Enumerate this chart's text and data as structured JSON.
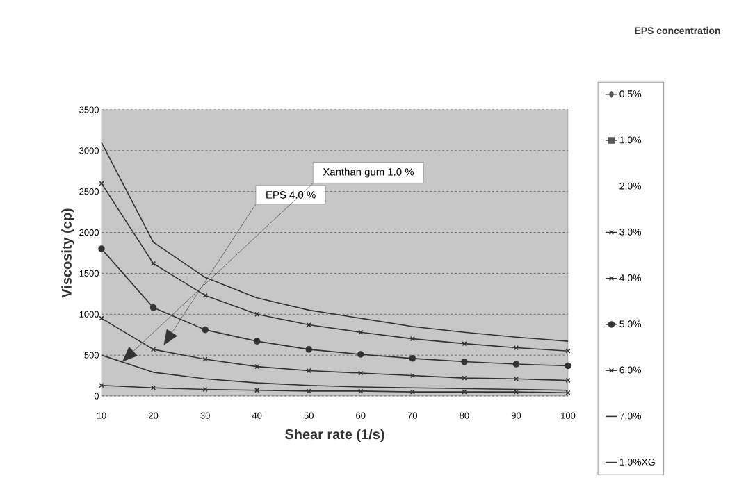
{
  "chart_data": {
    "type": "line",
    "xlabel": "Shear rate (1/s)",
    "ylabel": "Viscosity (cp)",
    "legend_title": "EPS concentration",
    "x": [
      10,
      20,
      30,
      40,
      50,
      60,
      70,
      80,
      90,
      100
    ],
    "xlim": [
      10,
      100
    ],
    "xticks": [
      10,
      20,
      30,
      40,
      50,
      60,
      70,
      80,
      90,
      100
    ],
    "ylim": [
      0,
      3500
    ],
    "yticks": [
      0,
      500,
      1000,
      1500,
      2000,
      2500,
      3000,
      3500
    ],
    "grid": "y",
    "legend": "right",
    "series": [
      {
        "name": "0.5%",
        "color": "#555555",
        "marker": "diamond",
        "values": [
          null,
          null,
          null,
          null,
          null,
          null,
          null,
          null,
          null,
          null
        ]
      },
      {
        "name": "1.0%",
        "color": "#555555",
        "marker": "square",
        "values": [
          null,
          null,
          null,
          null,
          null,
          null,
          null,
          null,
          null,
          null
        ]
      },
      {
        "name": "2.0%",
        "marker": "none",
        "values": [
          null,
          null,
          null,
          null,
          null,
          null,
          null,
          null,
          null,
          null
        ]
      },
      {
        "name": "3.0%",
        "color": "#333333",
        "marker": "cross",
        "values": [
          130,
          100,
          80,
          70,
          60,
          60,
          50,
          50,
          50,
          40
        ]
      },
      {
        "name": "4.0%",
        "color": "#333333",
        "marker": "cross",
        "values": [
          950,
          570,
          450,
          360,
          310,
          280,
          250,
          220,
          210,
          190
        ]
      },
      {
        "name": "5.0%",
        "color": "#333333",
        "marker": "circle",
        "values": [
          1800,
          1080,
          810,
          670,
          570,
          510,
          460,
          420,
          390,
          370
        ]
      },
      {
        "name": "6.0%",
        "color": "#333333",
        "marker": "cross",
        "values": [
          2600,
          1620,
          1230,
          1000,
          870,
          780,
          700,
          640,
          590,
          550
        ]
      },
      {
        "name": "7.0%",
        "color": "#333333",
        "marker": "none",
        "values": [
          3100,
          1880,
          1450,
          1200,
          1050,
          950,
          850,
          780,
          720,
          670
        ]
      },
      {
        "name": "1.0%XG",
        "color": "#333333",
        "marker": "none",
        "values": [
          500,
          290,
          210,
          160,
          130,
          110,
          100,
          90,
          80,
          70
        ]
      }
    ],
    "annotations": [
      "Xanthan gum 1.0 %",
      "EPS 4.0 %"
    ]
  }
}
